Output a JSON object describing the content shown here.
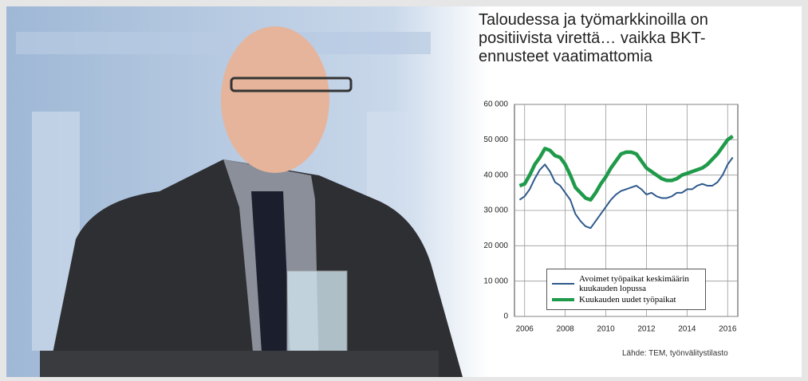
{
  "chart_data": {
    "type": "line",
    "title": "Taloudessa ja työmarkkinoilla on positiivista virettä… vaikka BKT-ennusteet vaatimattomia",
    "source": "Lähde: TEM, työnvälitystilasto",
    "x": [
      2005.75,
      2006,
      2006.25,
      2006.5,
      2006.75,
      2007,
      2007.25,
      2007.5,
      2007.75,
      2008,
      2008.25,
      2008.5,
      2008.75,
      2009,
      2009.25,
      2009.5,
      2009.75,
      2010,
      2010.25,
      2010.5,
      2010.75,
      2011,
      2011.25,
      2011.5,
      2011.75,
      2012,
      2012.25,
      2012.5,
      2012.75,
      2013,
      2013.25,
      2013.5,
      2013.75,
      2014,
      2014.25,
      2014.5,
      2014.75,
      2015,
      2015.25,
      2015.5,
      2015.75,
      2016,
      2016.25
    ],
    "series": [
      {
        "name": "Avoimet työpaikat keskimäärin kuukauden lopussa",
        "color": "#2f5a8c",
        "width": 2,
        "values": [
          33000,
          34000,
          36000,
          39000,
          41500,
          43000,
          41000,
          38000,
          37000,
          35000,
          33000,
          29000,
          27000,
          25500,
          25000,
          27000,
          29000,
          31000,
          33000,
          34500,
          35500,
          36000,
          36500,
          37000,
          36000,
          34500,
          35000,
          34000,
          33500,
          33500,
          34000,
          35000,
          35000,
          36000,
          36000,
          37000,
          37500,
          37000,
          37000,
          38000,
          40000,
          43000,
          45000
        ]
      },
      {
        "name": "Kuukauden uudet työpaikat",
        "color": "#1f9a4a",
        "width": 4.5,
        "values": [
          37000,
          37500,
          40000,
          43000,
          45000,
          47500,
          47000,
          45500,
          45000,
          43000,
          40000,
          36500,
          35000,
          33500,
          33000,
          35000,
          37500,
          39500,
          42000,
          44000,
          46000,
          46500,
          46500,
          46000,
          44000,
          42000,
          41000,
          40000,
          39000,
          38500,
          38500,
          39000,
          40000,
          40500,
          41000,
          41500,
          42000,
          43000,
          44500,
          46000,
          48000,
          50000,
          51000
        ]
      }
    ],
    "xlim": [
      2005.5,
      2016.5
    ],
    "xticks": [
      2006,
      2008,
      2010,
      2012,
      2014,
      2016
    ],
    "ylim": [
      0,
      60000
    ],
    "yticks": [
      0,
      {
        "value": 10000,
        "label": "10 000"
      },
      {
        "value": 20000,
        "label": "20 000"
      },
      {
        "value": 30000,
        "label": "30 000"
      },
      {
        "value": 40000,
        "label": "40 000"
      },
      {
        "value": 50000,
        "label": "50 000"
      },
      {
        "value": 60000,
        "label": "60 000"
      }
    ],
    "grid": true,
    "legend": "lower center"
  }
}
